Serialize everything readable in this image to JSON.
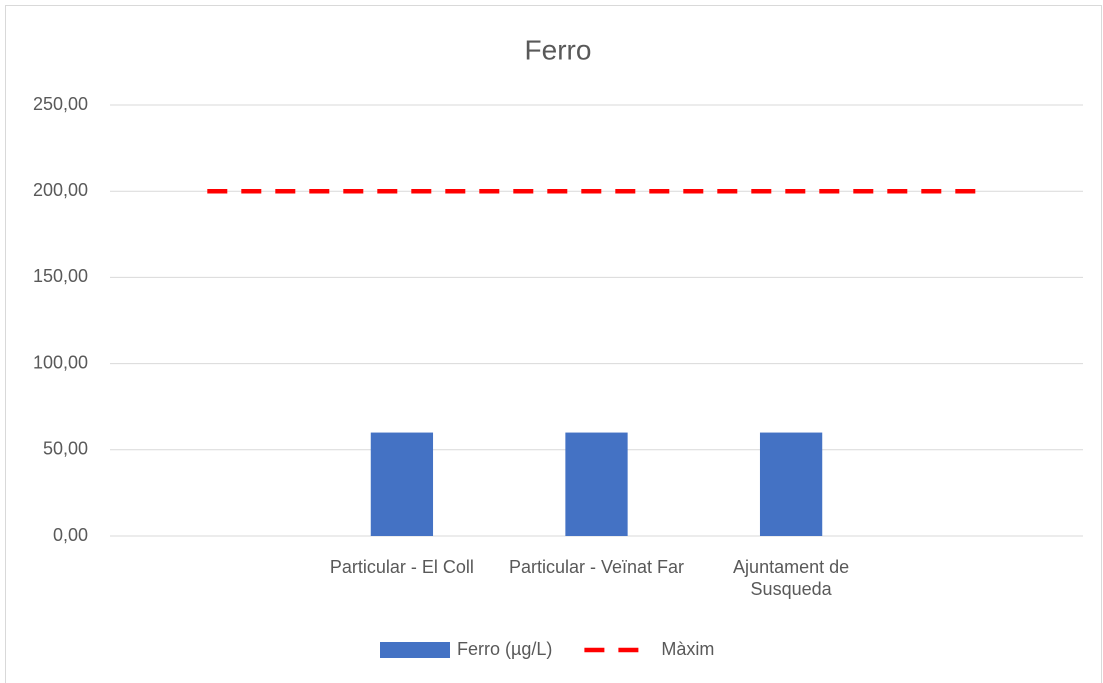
{
  "chart_data": {
    "type": "bar",
    "title": "Ferro",
    "categories": [
      null,
      "Particular - El Coll",
      "Particular - Veïnat Far",
      "Ajuntament de Susqueda",
      null
    ],
    "series": [
      {
        "name": "Ferro (µg/L)",
        "type": "bar",
        "color": "#4472c4",
        "values": [
          null,
          60,
          60,
          60,
          null
        ]
      },
      {
        "name": "Màxim",
        "type": "line",
        "color": "#ff0000",
        "dashed": true,
        "values": [
          200,
          200,
          200,
          200,
          200
        ]
      }
    ],
    "ylim": [
      0,
      250
    ],
    "yticks": [
      {
        "value": 0,
        "label": "0,00"
      },
      {
        "value": 50,
        "label": "50,00"
      },
      {
        "value": 100,
        "label": "100,00"
      },
      {
        "value": 150,
        "label": "150,00"
      },
      {
        "value": 200,
        "label": "200,00"
      },
      {
        "value": 250,
        "label": "250,00"
      }
    ],
    "grid": true,
    "legend": "bottom"
  }
}
